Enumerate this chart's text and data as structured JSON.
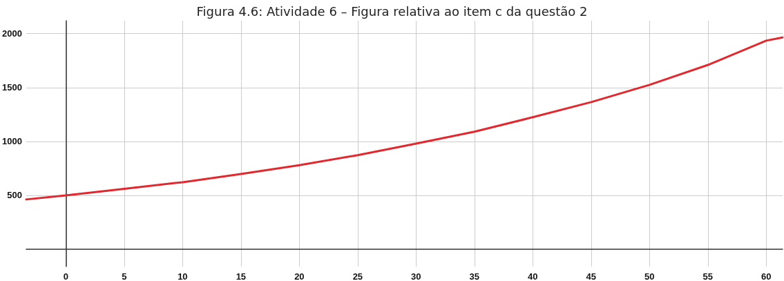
{
  "chart_data": {
    "type": "line",
    "title": "Figura 4.6: Atividade 6 – Figura relativa ao item c da questão 2",
    "x": [
      -3.4,
      0,
      5,
      10,
      15,
      20,
      25,
      30,
      35,
      40,
      45,
      50,
      55,
      60,
      61.4
    ],
    "series": [
      {
        "color": "#e0282e",
        "values": [
          462,
          500,
          560,
          622,
          698,
          780,
          873,
          980,
          1090,
          1225,
          1365,
          1525,
          1710,
          1935,
          1965
        ]
      }
    ],
    "xlim": [
      -3.4,
      61.4
    ],
    "ylim": [
      -160,
      2120
    ],
    "xticks": [
      0,
      5,
      10,
      15,
      20,
      25,
      30,
      35,
      40,
      45,
      50,
      55,
      60
    ],
    "yticks": [
      500,
      1000,
      1500,
      2000
    ],
    "grid": true,
    "marker": "none",
    "line_style": "solid"
  }
}
